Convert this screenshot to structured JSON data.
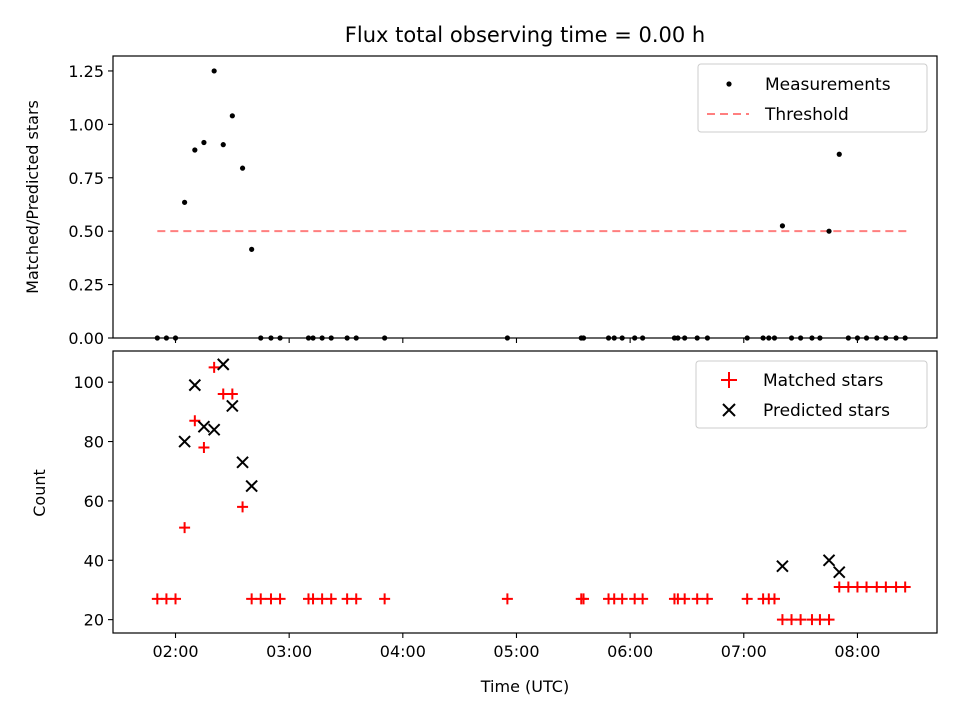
{
  "figure_title": "Flux total observing time = 0.00 h",
  "colors": {
    "threshold": "#ff7f7f",
    "matched": "#ff0000",
    "predicted": "#000000",
    "measure": "#000000"
  },
  "chart_data": [
    {
      "type": "scatter",
      "title": "Flux total observing time = 0.00 h",
      "xlabel": "",
      "ylabel": "Matched/Predicted stars",
      "xlim": [
        1.45,
        8.7
      ],
      "ylim": [
        0,
        1.32
      ],
      "yticks": [
        0,
        0.25,
        0.5,
        0.75,
        1.0,
        1.25
      ],
      "ytick_labels": [
        "0.00",
        "0.25",
        "0.50",
        "0.75",
        "1.00",
        "1.25"
      ],
      "legend": {
        "position": "top-right",
        "entries": [
          "Measurements",
          "Threshold"
        ]
      },
      "threshold": {
        "name": "Threshold",
        "value": 0.5,
        "x_range": [
          1.84,
          8.43
        ]
      },
      "series": [
        {
          "name": "Measurements",
          "marker": "dot",
          "x": [
            1.84,
            1.92,
            2.0,
            2.08,
            2.17,
            2.25,
            2.34,
            2.42,
            2.5,
            2.59,
            2.67,
            2.75,
            2.84,
            2.92,
            3.17,
            3.21,
            3.29,
            3.37,
            3.51,
            3.59,
            3.84,
            4.92,
            5.57,
            5.59,
            5.81,
            5.86,
            5.93,
            6.04,
            6.11,
            6.39,
            6.42,
            6.48,
            6.59,
            6.68,
            7.03,
            7.17,
            7.22,
            7.27,
            7.34,
            7.42,
            7.5,
            7.6,
            7.67,
            7.75,
            7.84,
            7.92,
            8.0,
            8.08,
            8.17,
            8.25,
            8.34,
            8.42
          ],
          "y": [
            0,
            0,
            0,
            0.635,
            0.88,
            0.915,
            1.25,
            0.905,
            1.04,
            0.795,
            0.415,
            0,
            0,
            0,
            0,
            0,
            0,
            0,
            0,
            0,
            0,
            0,
            0,
            0,
            0,
            0,
            0,
            0,
            0,
            0,
            0,
            0,
            0,
            0,
            0,
            0,
            0,
            0,
            0.525,
            0,
            0,
            0,
            0,
            0.5,
            0.86,
            0,
            0,
            0,
            0,
            0,
            0,
            0
          ]
        }
      ]
    },
    {
      "type": "scatter",
      "title": "",
      "xlabel": "Time (UTC)",
      "ylabel": "Count",
      "xlim": [
        1.45,
        8.7
      ],
      "ylim": [
        15.5,
        110.5
      ],
      "yticks": [
        20,
        40,
        60,
        80,
        100
      ],
      "ytick_labels": [
        "20",
        "40",
        "60",
        "80",
        "100"
      ],
      "xticks": [
        2,
        3,
        4,
        5,
        6,
        7,
        8
      ],
      "xtick_labels": [
        "02:00",
        "03:00",
        "04:00",
        "05:00",
        "06:00",
        "07:00",
        "08:00"
      ],
      "legend": {
        "position": "top-right",
        "entries": [
          "Matched stars",
          "Predicted stars"
        ]
      },
      "series": [
        {
          "name": "Matched stars",
          "marker": "plus",
          "x": [
            1.84,
            1.92,
            2.0,
            2.08,
            2.17,
            2.25,
            2.34,
            2.42,
            2.5,
            2.59,
            2.67,
            2.75,
            2.84,
            2.92,
            3.17,
            3.21,
            3.29,
            3.37,
            3.51,
            3.59,
            3.84,
            4.92,
            5.57,
            5.59,
            5.81,
            5.86,
            5.93,
            6.04,
            6.11,
            6.39,
            6.42,
            6.48,
            6.59,
            6.68,
            7.03,
            7.17,
            7.22,
            7.27,
            7.34,
            7.42,
            7.5,
            7.6,
            7.67,
            7.75,
            7.84,
            7.92,
            8.0,
            8.08,
            8.17,
            8.25,
            8.34,
            8.42
          ],
          "y": [
            27,
            27,
            27,
            51,
            87,
            78,
            105,
            96,
            96,
            58,
            27,
            27,
            27,
            27,
            27,
            27,
            27,
            27,
            27,
            27,
            27,
            27,
            27,
            27,
            27,
            27,
            27,
            27,
            27,
            27,
            27,
            27,
            27,
            27,
            27,
            27,
            27,
            27,
            20,
            20,
            20,
            20,
            20,
            20,
            31,
            31,
            31,
            31,
            31,
            31,
            31,
            31
          ]
        },
        {
          "name": "Predicted stars",
          "marker": "x",
          "x": [
            2.08,
            2.17,
            2.25,
            2.34,
            2.42,
            2.5,
            2.59,
            2.67,
            7.34,
            7.75,
            7.84
          ],
          "y": [
            80,
            99,
            85,
            84,
            106,
            92,
            73,
            65,
            38,
            40,
            36
          ]
        }
      ]
    }
  ]
}
